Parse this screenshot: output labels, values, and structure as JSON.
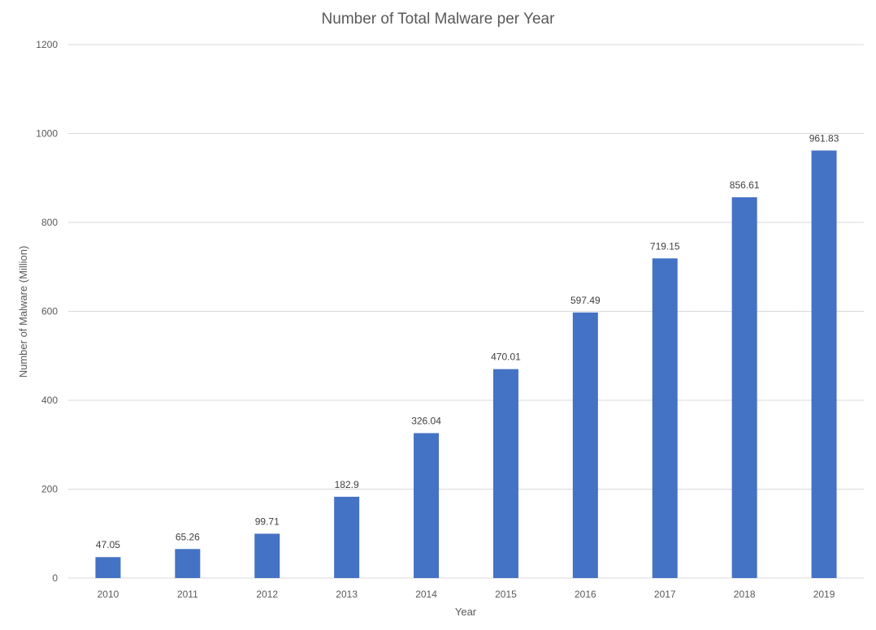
{
  "chart_data": {
    "type": "bar",
    "title": "Number of Total Malware per Year",
    "xlabel": "Year",
    "ylabel": "Number of Malware (Million)",
    "categories": [
      "2010",
      "2011",
      "2012",
      "2013",
      "2014",
      "2015",
      "2016",
      "2017",
      "2018",
      "2019"
    ],
    "values": [
      47.05,
      65.26,
      99.71,
      182.9,
      326.04,
      470.01,
      597.49,
      719.15,
      856.61,
      961.83
    ],
    "data_labels": [
      "47.05",
      "65.26",
      "99.71",
      "182.9",
      "326.04",
      "470.01",
      "597.49",
      "719.15",
      "856.61",
      "961.83"
    ],
    "ylim": [
      0,
      1200
    ],
    "yticks": [
      0,
      200,
      400,
      600,
      800,
      1000,
      1200
    ],
    "grid": true,
    "legend": "none",
    "bar_color": "#4472c4"
  }
}
